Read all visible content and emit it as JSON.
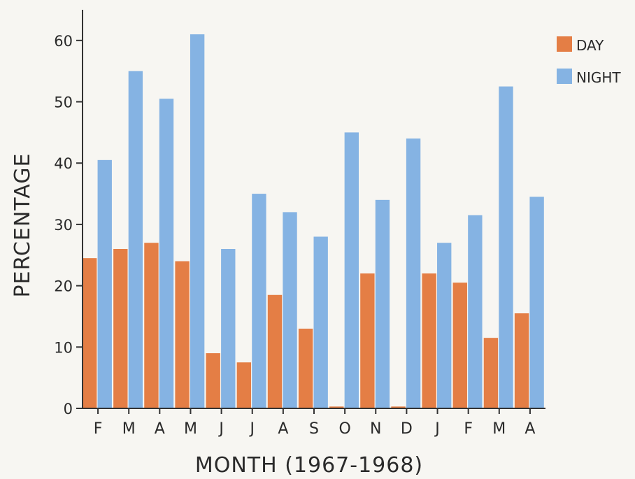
{
  "chart_data": {
    "type": "bar",
    "xlabel": "MONTH (1967-1968)",
    "ylabel": "PERCENTAGE",
    "categories": [
      "F",
      "M",
      "A",
      "M",
      "J",
      "J",
      "A",
      "S",
      "O",
      "N",
      "D",
      "J",
      "F",
      "M",
      "A"
    ],
    "series": [
      {
        "name": "DAY",
        "color": "#e47e45",
        "values": [
          24.5,
          26,
          27,
          24,
          9,
          7.5,
          18.5,
          13,
          0.3,
          22,
          0.3,
          22,
          20.5,
          11.5,
          15.5
        ]
      },
      {
        "name": "NIGHT",
        "color": "#85b3e3",
        "values": [
          40.5,
          55,
          50.5,
          61,
          26,
          35,
          32,
          28,
          45,
          34,
          44,
          27,
          31.5,
          52.5,
          34.5
        ]
      }
    ],
    "ylim": [
      0,
      65
    ],
    "yticks": [
      0,
      10,
      20,
      30,
      40,
      50,
      60
    ],
    "grid": false,
    "legend_position": "top-right"
  }
}
